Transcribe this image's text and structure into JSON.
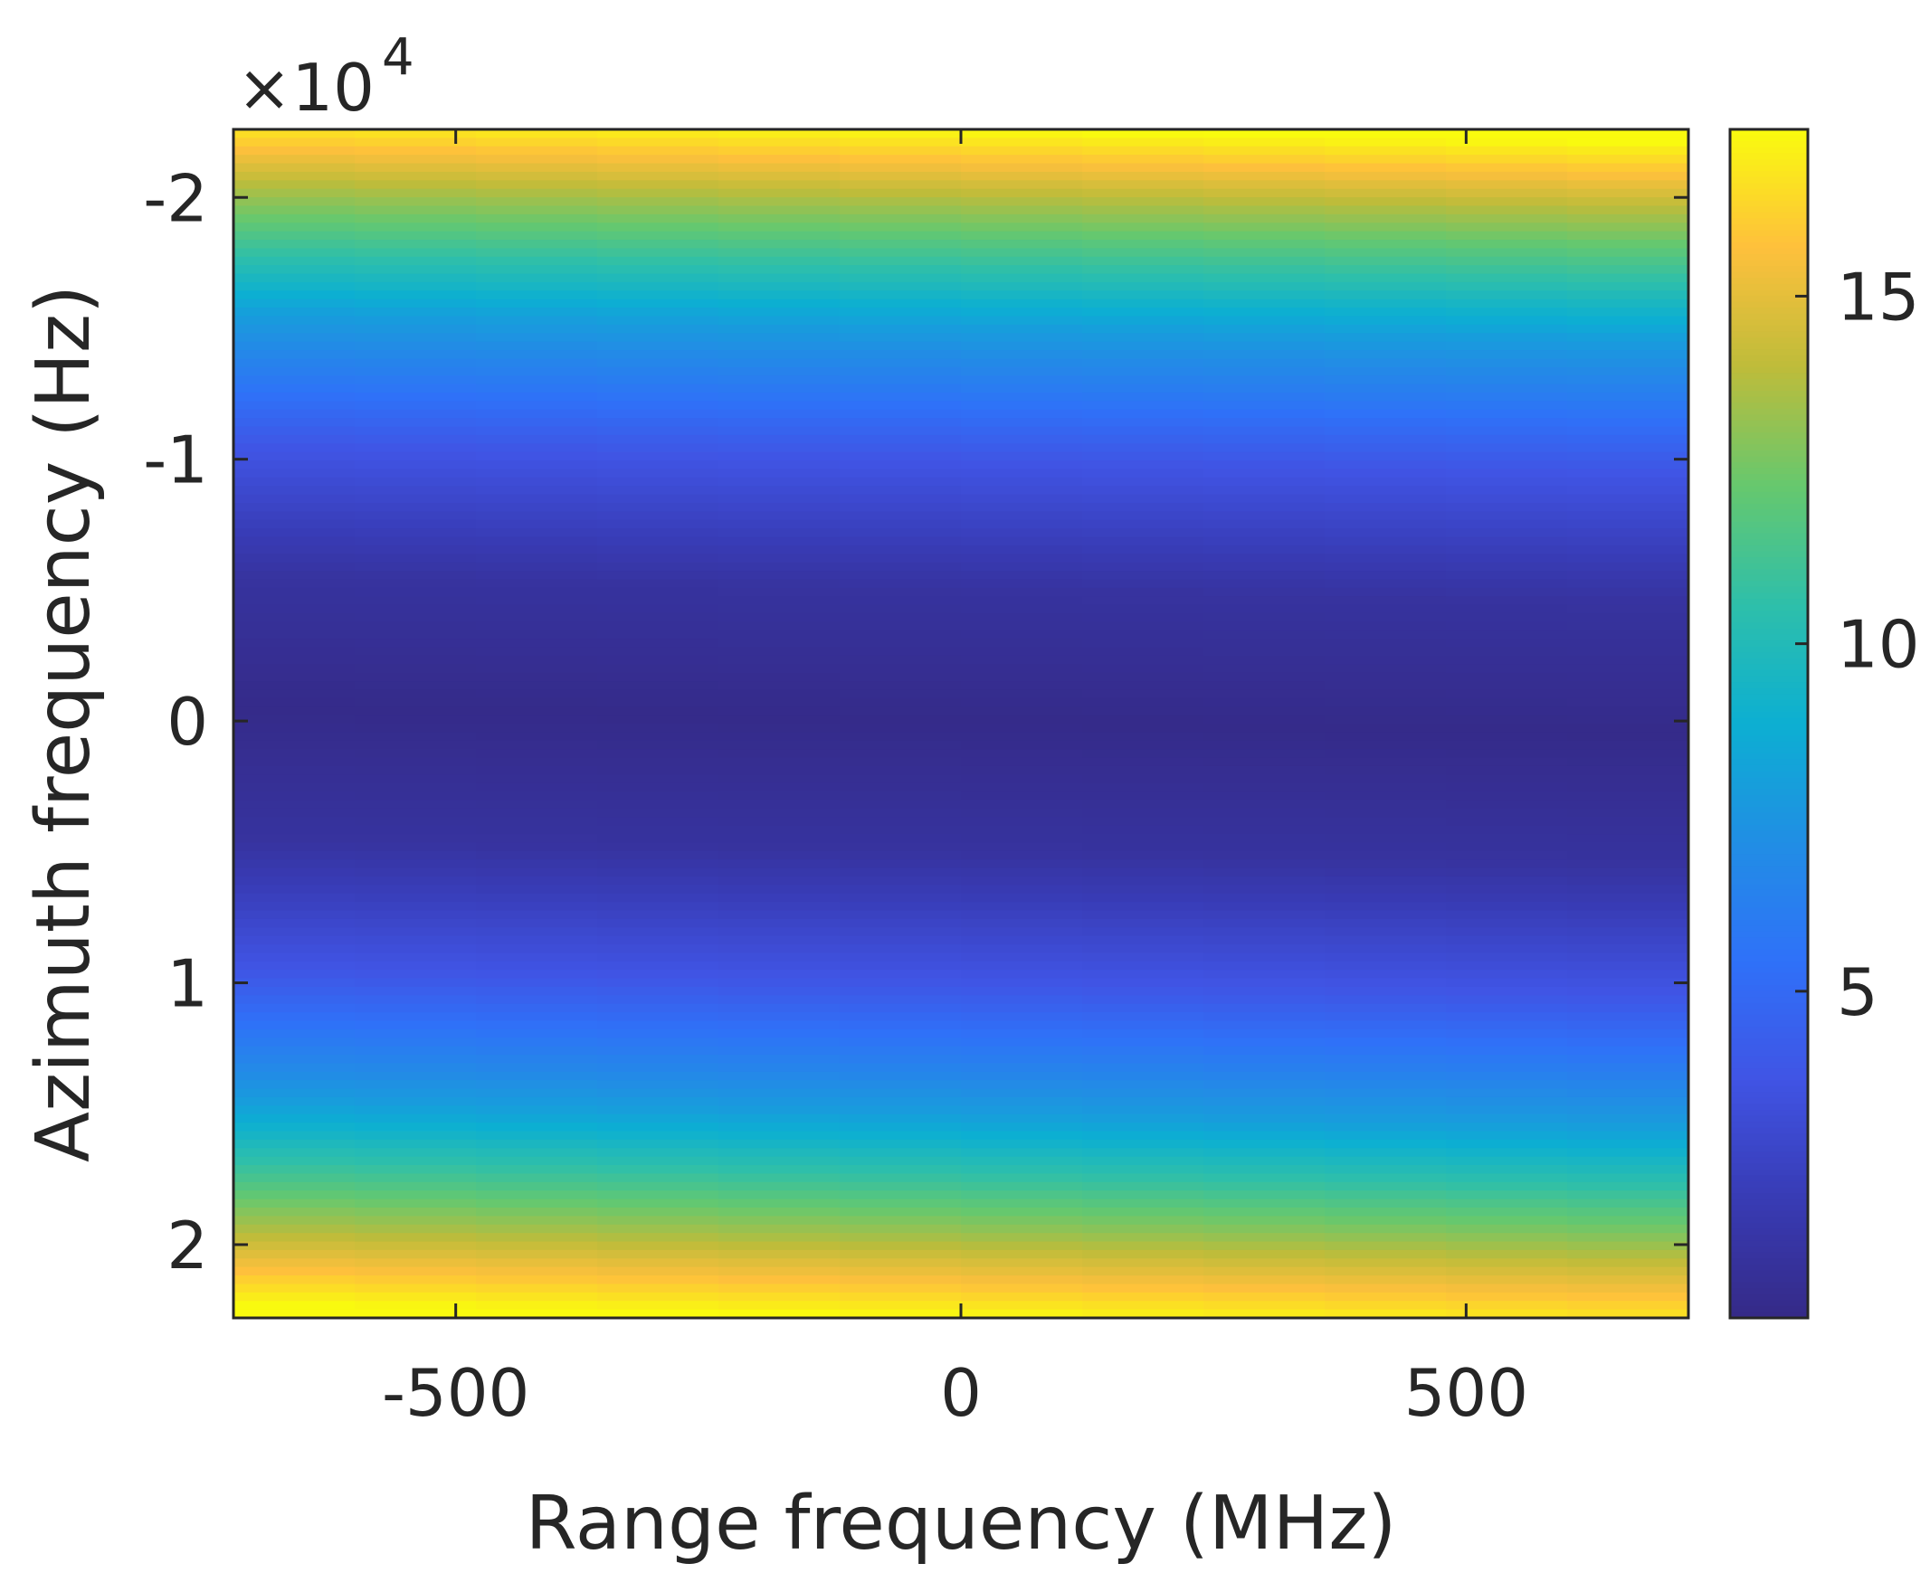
{
  "chart_data": {
    "type": "heatmap",
    "title": "",
    "xlabel": "Range frequency (MHz)",
    "ylabel": "Azimuth frequency (Hz)",
    "x_range": [
      -720,
      720
    ],
    "y_range": [
      -22600,
      22800
    ],
    "y_reversed": true,
    "y_exponent_label": {
      "base": "×10",
      "power": "4"
    },
    "x_ticks": [
      -500,
      0,
      500
    ],
    "x_tick_labels": [
      "-500",
      "0",
      "500"
    ],
    "y_ticks": [
      -20000,
      -10000,
      0,
      10000,
      20000
    ],
    "y_tick_labels": [
      "-2",
      "-1",
      "0",
      "1",
      "2"
    ],
    "colorbar": {
      "range": [
        0.3,
        17.4
      ],
      "ticks": [
        5,
        10,
        15
      ],
      "tick_labels": [
        "5",
        "10",
        "15"
      ],
      "colormap": "parula"
    },
    "z_description_profile": {
      "azimuth_hz": [
        -22600,
        -20000,
        -15000,
        -10000,
        -5000,
        0,
        5000,
        10000,
        15000,
        20000,
        22800
      ],
      "value": [
        17.4,
        13.8,
        7.9,
        3.8,
        1.2,
        0.4,
        1.2,
        3.8,
        7.9,
        13.8,
        17.4
      ]
    },
    "z_tilt_per_mhz_hz": -0.7
  }
}
